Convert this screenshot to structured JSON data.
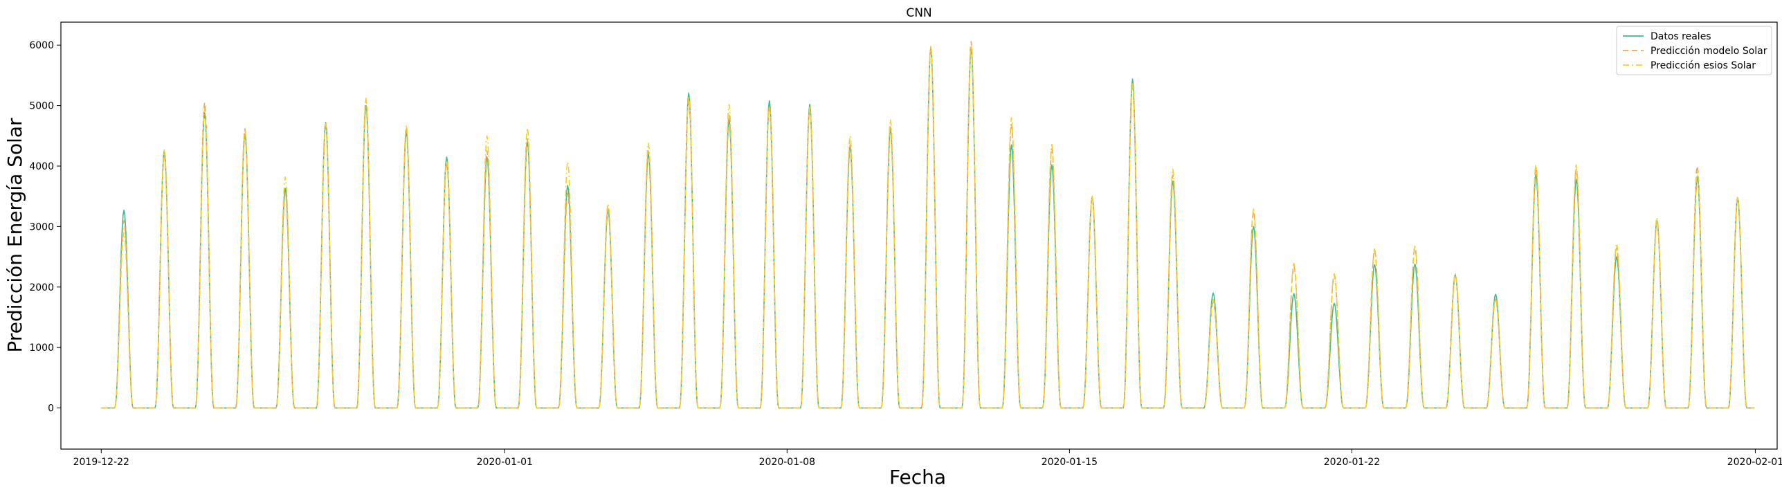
{
  "chart_data": {
    "type": "line",
    "title": "CNN",
    "xlabel": "Fecha",
    "ylabel": "Predicción Energía Solar",
    "x_ticks": [
      "2019-12-22",
      "2020-01-01",
      "2020-01-08",
      "2020-01-15",
      "2020-01-22",
      "2020-02-01"
    ],
    "x_range": [
      "2019-12-21T00:00",
      "2020-02-01T13:00"
    ],
    "ylim": [
      -680,
      6380
    ],
    "y_ticks": [
      0,
      1000,
      2000,
      3000,
      4000,
      5000,
      6000
    ],
    "grid": false,
    "legend_position": "top-right",
    "day_start": "2019-12-22",
    "daily_peaks": {
      "dates": [
        "2019-12-22",
        "2019-12-23",
        "2019-12-24",
        "2019-12-25",
        "2019-12-26",
        "2019-12-27",
        "2019-12-28",
        "2019-12-29",
        "2019-12-30",
        "2019-12-31",
        "2020-01-01",
        "2020-01-02",
        "2020-01-03",
        "2020-01-04",
        "2020-01-05",
        "2020-01-06",
        "2020-01-07",
        "2020-01-08",
        "2020-01-09",
        "2020-01-10",
        "2020-01-11",
        "2020-01-12",
        "2020-01-13",
        "2020-01-14",
        "2020-01-15",
        "2020-01-16",
        "2020-01-17",
        "2020-01-18",
        "2020-01-19",
        "2020-01-20",
        "2020-01-21",
        "2020-01-22",
        "2020-01-23",
        "2020-01-24",
        "2020-01-25",
        "2020-01-26",
        "2020-01-27",
        "2020-01-28",
        "2020-01-29",
        "2020-01-30",
        "2020-01-31"
      ],
      "Datos reales": [
        3270,
        4250,
        4880,
        4530,
        3630,
        4720,
        5000,
        4570,
        4150,
        4150,
        4400,
        3680,
        3270,
        4200,
        5210,
        4780,
        5080,
        5020,
        4330,
        4620,
        5970,
        5960,
        4350,
        4020,
        3490,
        5440,
        3750,
        1900,
        3000,
        1890,
        1730,
        2370,
        2380,
        2200,
        1880,
        3860,
        3780,
        2500,
        3100,
        3820,
        3480
      ],
      "Predicción modelo Solar": [
        3100,
        4200,
        5050,
        4620,
        3550,
        4650,
        5100,
        4620,
        4050,
        4250,
        4450,
        3550,
        3300,
        4250,
        5100,
        4850,
        5000,
        4950,
        4350,
        4650,
        5960,
        6060,
        4700,
        4300,
        3500,
        5360,
        3850,
        1750,
        3250,
        2350,
        2200,
        2600,
        2650,
        2200,
        1800,
        3980,
        3950,
        2650,
        3100,
        4000,
        3450
      ],
      "Predicción esios Solar": [
        2900,
        4270,
        4950,
        4600,
        3820,
        4700,
        5120,
        4680,
        4100,
        4500,
        4630,
        4070,
        3380,
        4380,
        5160,
        5020,
        4990,
        4970,
        4500,
        4770,
        5980,
        6000,
        4800,
        4360,
        3500,
        5360,
        3950,
        1800,
        3290,
        2390,
        2220,
        2630,
        2680,
        2230,
        1800,
        4020,
        4020,
        2720,
        3150,
        3900,
        3500
      ]
    },
    "series": [
      {
        "name": "Datos reales",
        "color": "#3dba8f",
        "dash": "solid"
      },
      {
        "name": "Predicción modelo Solar",
        "color": "#f5a35a",
        "dash": "dashed"
      },
      {
        "name": "Predicción esios Solar",
        "color": "#f5d21a",
        "dash": "dashdot"
      }
    ]
  }
}
